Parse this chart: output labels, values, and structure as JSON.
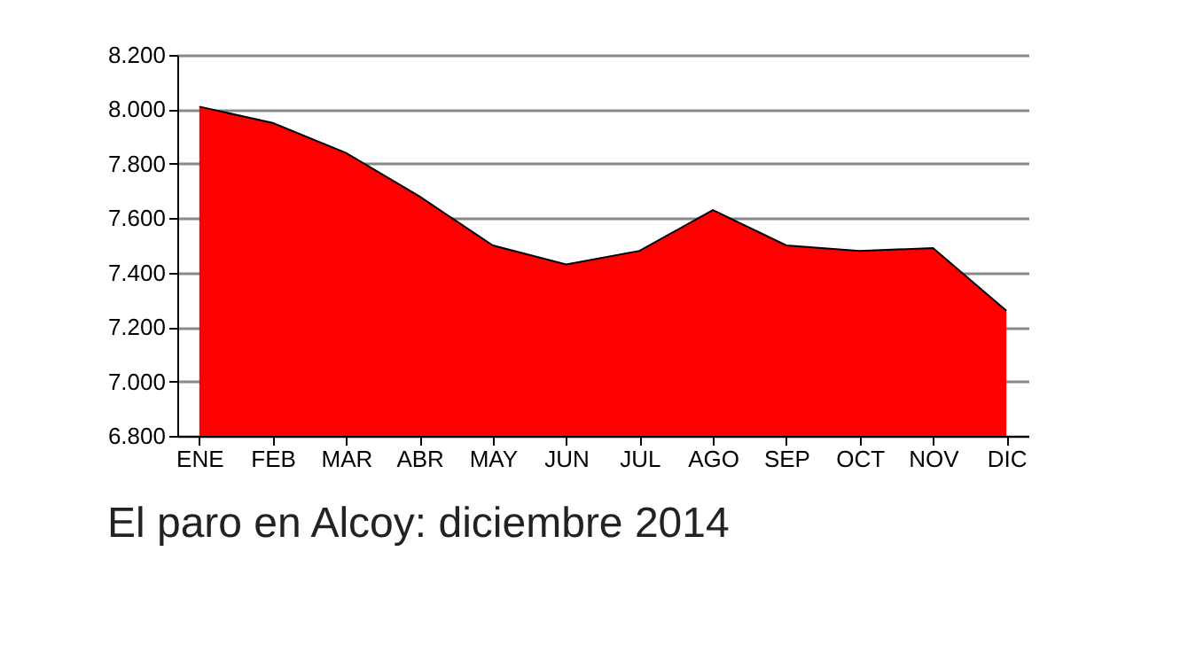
{
  "chart_data": {
    "type": "area",
    "title": "El paro en Alcoy: diciembre 2014",
    "categories": [
      "ENE",
      "FEB",
      "MAR",
      "ABR",
      "MAY",
      "JUN",
      "JUL",
      "AGO",
      "SEP",
      "OCT",
      "NOV",
      "DIC"
    ],
    "series": [
      {
        "color": "#ff0000",
        "values": [
          8010,
          7950,
          7840,
          7680,
          7500,
          7430,
          7480,
          7630,
          7500,
          7480,
          7490,
          7260
        ]
      }
    ],
    "ylim": [
      6800,
      8200
    ],
    "yticks": [
      {
        "value": 6800,
        "label": "6.800"
      },
      {
        "value": 7000,
        "label": "7.000"
      },
      {
        "value": 7200,
        "label": "7.200"
      },
      {
        "value": 7400,
        "label": "7.400"
      },
      {
        "value": 7600,
        "label": "7.600"
      },
      {
        "value": 7800,
        "label": "7.800"
      },
      {
        "value": 8000,
        "label": "8.000"
      },
      {
        "value": 8200,
        "label": "8.200"
      }
    ],
    "grid": "y"
  }
}
